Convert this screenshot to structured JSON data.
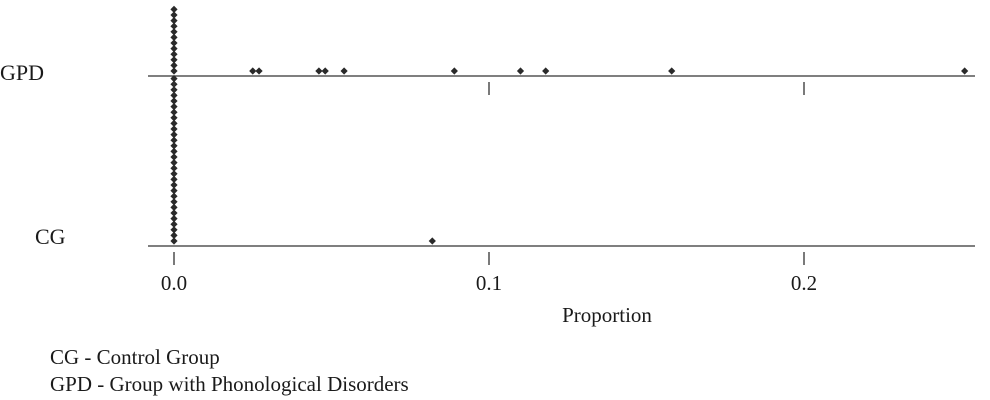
{
  "chart_data": {
    "type": "scatter",
    "subtype": "dot plot",
    "xlabel": "Proportion",
    "ylabel": "",
    "xlim": [
      -0.005,
      0.253
    ],
    "x_ticks": [
      0.0,
      0.1,
      0.2
    ],
    "x_tick_labels": [
      "0.0",
      "0.1",
      "0.2"
    ],
    "grid": false,
    "marker_color": "#2a2a2a",
    "series": [
      {
        "name": "GPD",
        "x": [
          0,
          0,
          0,
          0,
          0,
          0,
          0,
          0,
          0,
          0,
          0,
          0,
          0.025,
          0.027,
          0.046,
          0.048,
          0.054,
          0.089,
          0.11,
          0.118,
          0.158,
          0.251
        ]
      },
      {
        "name": "CG",
        "x": [
          0,
          0,
          0,
          0,
          0,
          0,
          0,
          0,
          0,
          0,
          0,
          0,
          0,
          0,
          0,
          0,
          0,
          0,
          0,
          0,
          0,
          0,
          0,
          0,
          0,
          0,
          0,
          0,
          0,
          0,
          0.082
        ]
      }
    ]
  },
  "legend_notes": [
    "CG - Control Group",
    "GPD - Group with Phonological Disorders"
  ]
}
